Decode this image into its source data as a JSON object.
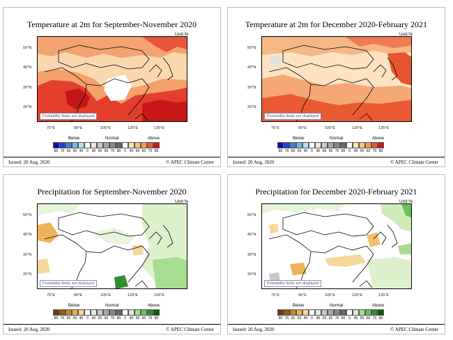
{
  "panels": [
    {
      "title": "Temperature at 2m for September-November 2020",
      "unit": "Unit:%",
      "note": "Probability fields are displayed",
      "categories": {
        "below": "Below",
        "normal": "Normal",
        "above": "Above"
      },
      "scale": [
        "80",
        "70",
        "60",
        "50",
        "40",
        "0",
        "40",
        "50",
        "60",
        "70",
        "80",
        "0",
        "40",
        "50",
        "60",
        "70",
        "80"
      ],
      "colors": [
        "#0b0bb0",
        "#1f3fd8",
        "#3f7ee8",
        "#79b4f2",
        "#b8e0f8",
        "#ffffff",
        "#e8e8e8",
        "#c8c8c8",
        "#a8a8a8",
        "#888888",
        "#666666",
        "#ffffff",
        "#fde7b0",
        "#f7c67a",
        "#f29c4e",
        "#e85830",
        "#c81818"
      ],
      "issued": "Issued: 20 Aug, 2020",
      "center": "© APEC Climate Center",
      "lat_labels": [
        "50°N",
        "40°N",
        "30°N",
        "20°N"
      ],
      "lon_labels": [
        "75°E",
        "90°E",
        "105°E",
        "120°E",
        "135°E"
      ]
    },
    {
      "title": "Temperature at 2m for December 2020-February 2021",
      "unit": "Unit:%",
      "note": "Probability fields are displayed",
      "categories": {
        "below": "Below",
        "normal": "Normal",
        "above": "Above"
      },
      "scale": [
        "80",
        "70",
        "60",
        "50",
        "40",
        "0",
        "40",
        "50",
        "60",
        "70",
        "80",
        "0",
        "40",
        "50",
        "60",
        "70",
        "80"
      ],
      "colors": [
        "#0b0bb0",
        "#1f3fd8",
        "#3f7ee8",
        "#79b4f2",
        "#b8e0f8",
        "#ffffff",
        "#e8e8e8",
        "#c8c8c8",
        "#a8a8a8",
        "#888888",
        "#666666",
        "#ffffff",
        "#fde7b0",
        "#f7c67a",
        "#f29c4e",
        "#e85830",
        "#c81818"
      ],
      "issued": "Issued: 20 Aug, 2020",
      "center": "© APEC Climate Center",
      "lat_labels": [
        "50°N",
        "40°N",
        "30°N",
        "20°N"
      ],
      "lon_labels": [
        "75°E",
        "90°E",
        "105°E",
        "120°E",
        "135°E"
      ]
    },
    {
      "title": "Precipitation for September-November 2020",
      "unit": "Unit:%",
      "note": "Probability fields are displayed",
      "categories": {
        "below": "Below",
        "normal": "Normal",
        "above": "Above"
      },
      "scale": [
        "80",
        "70",
        "60",
        "50",
        "40",
        "0",
        "40",
        "50",
        "60",
        "70",
        "80",
        "0",
        "40",
        "50",
        "60",
        "70",
        "80"
      ],
      "colors": [
        "#6b3a08",
        "#9a5a14",
        "#c88828",
        "#e8b050",
        "#f5d79a",
        "#ffffff",
        "#e8e8e8",
        "#c8c8c8",
        "#a8a8a8",
        "#888888",
        "#666666",
        "#ffffff",
        "#d8f0c8",
        "#a8dc90",
        "#6cbf5c",
        "#2e8e2e",
        "#0b5a0b"
      ],
      "issued": "Issued: 20 Aug, 2020",
      "center": "© APEC Climate Center",
      "lat_labels": [
        "50°N",
        "40°N",
        "30°N",
        "20°N"
      ],
      "lon_labels": [
        "75°E",
        "90°E",
        "105°E",
        "120°E",
        "135°E"
      ]
    },
    {
      "title": "Precipitation for December 2020-February 2021",
      "unit": "Unit:%",
      "note": "Probability fields are displayed",
      "categories": {
        "below": "Below",
        "normal": "Normal",
        "above": "Above"
      },
      "scale": [
        "80",
        "70",
        "60",
        "50",
        "40",
        "0",
        "40",
        "50",
        "60",
        "70",
        "80",
        "0",
        "40",
        "50",
        "60",
        "70",
        "80"
      ],
      "colors": [
        "#6b3a08",
        "#9a5a14",
        "#c88828",
        "#e8b050",
        "#f5d79a",
        "#ffffff",
        "#e8e8e8",
        "#c8c8c8",
        "#a8a8a8",
        "#888888",
        "#666666",
        "#ffffff",
        "#d8f0c8",
        "#a8dc90",
        "#6cbf5c",
        "#2e8e2e",
        "#0b5a0b"
      ],
      "issued": "Issued: 20 Aug, 2020",
      "center": "© APEC Climate Center",
      "lat_labels": [
        "50°N",
        "40°N",
        "30°N",
        "20°N"
      ],
      "lon_labels": [
        "75°E",
        "90°E",
        "105°E",
        "120°E",
        "135°E"
      ]
    }
  ]
}
